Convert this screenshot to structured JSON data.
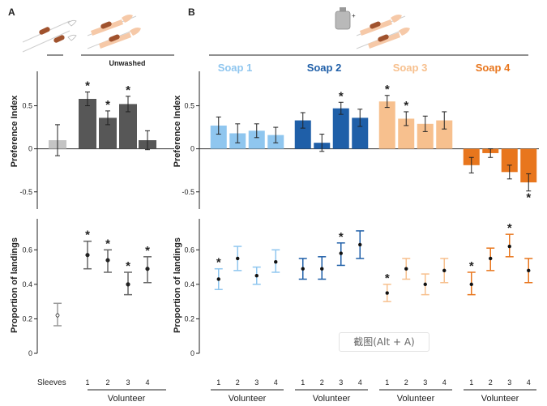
{
  "panels": {
    "a": "A",
    "b": "B"
  },
  "headers": {
    "unwashed": "Unwashed"
  },
  "soaps": [
    {
      "name": "Soap 1",
      "color": "#8fc6ef"
    },
    {
      "name": "Soap 2",
      "color": "#1f5fa8"
    },
    {
      "name": "Soap 3",
      "color": "#f7c08e"
    },
    {
      "name": "Soap 4",
      "color": "#e8761d"
    }
  ],
  "labels": {
    "sleeves": "Sleeves",
    "volunteer": "Volunteer",
    "volunteer_ticks": [
      "1",
      "2",
      "3",
      "4"
    ]
  },
  "watermark": "截图(Alt + A)",
  "chart_data": [
    {
      "type": "bar",
      "panel": "A",
      "ylabel": "Preference Index",
      "ylim": [
        -0.7,
        0.9
      ],
      "yticks": [
        "0.5",
        "0",
        "-0.5"
      ],
      "categories": [
        "Sleeves",
        "1",
        "2",
        "3",
        "4"
      ],
      "values": [
        0.1,
        0.58,
        0.36,
        0.52,
        0.1
      ],
      "errors": [
        0.18,
        0.08,
        0.08,
        0.09,
        0.11
      ],
      "significant": [
        false,
        true,
        true,
        true,
        false
      ],
      "colors": [
        "#c4c4c4",
        "#575757",
        "#575757",
        "#575757",
        "#575757"
      ]
    },
    {
      "type": "scatter",
      "panel": "A",
      "ylabel": "Proportion of landings",
      "ylim": [
        0,
        0.78
      ],
      "yticks": [
        "0.6",
        "0.4",
        "0.2",
        "0"
      ],
      "categories": [
        "Sleeves",
        "1",
        "2",
        "3",
        "4"
      ],
      "values": [
        0.22,
        0.57,
        0.54,
        0.4,
        0.49
      ],
      "lower": [
        0.16,
        0.49,
        0.47,
        0.34,
        0.41
      ],
      "upper": [
        0.29,
        0.65,
        0.6,
        0.47,
        0.56
      ],
      "significant": [
        false,
        true,
        true,
        true,
        true
      ],
      "colors": [
        "#9a9a9a",
        "#666666",
        "#666666",
        "#666666",
        "#666666"
      ]
    },
    {
      "type": "bar",
      "panel": "B",
      "ylabel": "Preference Index",
      "ylim": [
        -0.7,
        0.9
      ],
      "yticks": [
        "0.5",
        "0",
        "-0.5"
      ],
      "categories": [
        "1",
        "2",
        "3",
        "4"
      ],
      "series": [
        {
          "name": "Soap 1",
          "values": [
            0.27,
            0.18,
            0.21,
            0.16
          ],
          "errors": [
            0.1,
            0.11,
            0.08,
            0.09
          ],
          "significant": [
            false,
            false,
            false,
            false
          ]
        },
        {
          "name": "Soap 2",
          "values": [
            0.33,
            0.07,
            0.47,
            0.36
          ],
          "errors": [
            0.09,
            0.1,
            0.07,
            0.1
          ],
          "significant": [
            false,
            false,
            true,
            false
          ]
        },
        {
          "name": "Soap 3",
          "values": [
            0.55,
            0.35,
            0.29,
            0.33
          ],
          "errors": [
            0.07,
            0.08,
            0.09,
            0.1
          ],
          "significant": [
            true,
            true,
            false,
            false
          ]
        },
        {
          "name": "Soap 4",
          "values": [
            -0.19,
            -0.05,
            -0.27,
            -0.39
          ],
          "errors": [
            0.09,
            0.05,
            0.08,
            0.1
          ],
          "significant": [
            false,
            false,
            false,
            true
          ]
        }
      ]
    },
    {
      "type": "scatter",
      "panel": "B",
      "ylabel": "Proportion of landings",
      "ylim": [
        0,
        0.78
      ],
      "yticks": [
        "0.6",
        "0.4",
        "0.2",
        "0"
      ],
      "categories": [
        "1",
        "2",
        "3",
        "4"
      ],
      "series": [
        {
          "name": "Soap 1",
          "values": [
            0.43,
            0.55,
            0.45,
            0.53
          ],
          "lower": [
            0.37,
            0.48,
            0.4,
            0.47
          ],
          "upper": [
            0.49,
            0.62,
            0.5,
            0.6
          ],
          "significant": [
            true,
            false,
            false,
            false
          ]
        },
        {
          "name": "Soap 2",
          "values": [
            0.49,
            0.49,
            0.58,
            0.63
          ],
          "lower": [
            0.43,
            0.43,
            0.51,
            0.55
          ],
          "upper": [
            0.55,
            0.56,
            0.64,
            0.71
          ],
          "significant": [
            false,
            false,
            true,
            false
          ]
        },
        {
          "name": "Soap 3",
          "values": [
            0.35,
            0.49,
            0.4,
            0.48
          ],
          "lower": [
            0.3,
            0.43,
            0.34,
            0.41
          ],
          "upper": [
            0.4,
            0.55,
            0.46,
            0.55
          ],
          "significant": [
            true,
            false,
            false,
            false
          ]
        },
        {
          "name": "Soap 4",
          "values": [
            0.4,
            0.55,
            0.62,
            0.48
          ],
          "lower": [
            0.34,
            0.48,
            0.56,
            0.41
          ],
          "upper": [
            0.47,
            0.61,
            0.69,
            0.55
          ],
          "significant": [
            true,
            false,
            true,
            false
          ]
        }
      ]
    }
  ]
}
